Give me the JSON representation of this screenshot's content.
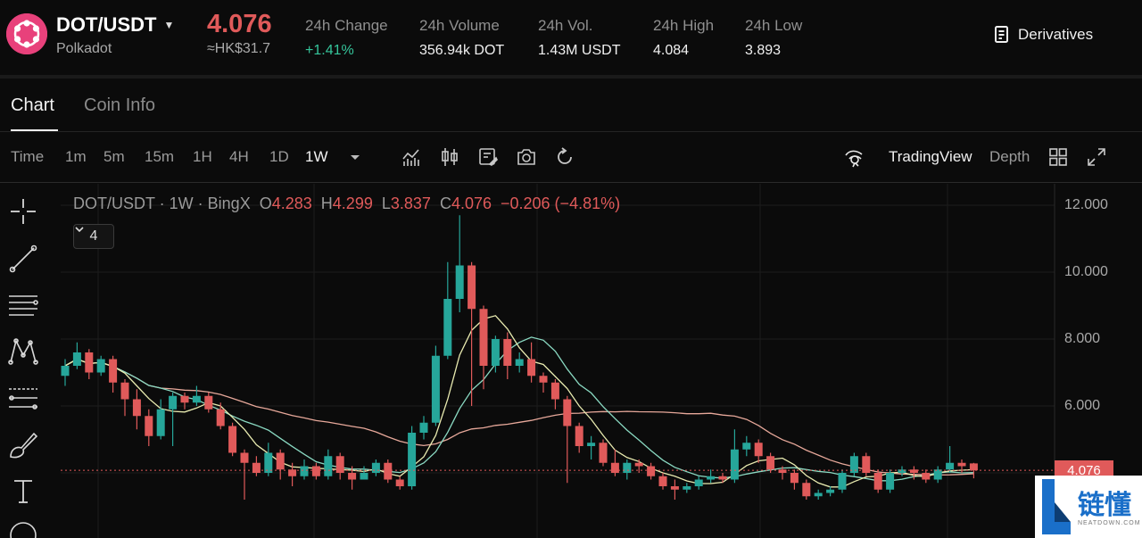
{
  "header": {
    "pair": "DOT/USDT",
    "pair_sub": "Polkadot",
    "price": "4.076",
    "price_hk": "≈HK$31.7",
    "stats": [
      {
        "label": "24h Change",
        "value": "+1.41%",
        "positive": true
      },
      {
        "label": "24h Volume",
        "value": "356.94k DOT"
      },
      {
        "label": "24h Vol.",
        "value": "1.43M USDT"
      },
      {
        "label": "24h High",
        "value": "4.084"
      },
      {
        "label": "24h Low",
        "value": "3.893"
      }
    ],
    "derivatives_label": "Derivatives"
  },
  "tabs": [
    {
      "label": "Chart",
      "active": true
    },
    {
      "label": "Coin Info",
      "active": false
    }
  ],
  "toolbar": {
    "timeframes": [
      "Time",
      "1m",
      "5m",
      "15m",
      "1H",
      "4H",
      "1D",
      "1W"
    ],
    "active_timeframe": "1W",
    "icons": [
      "indicators-icon",
      "candle-type-icon",
      "template-icon",
      "screenshot-icon",
      "reset-icon"
    ],
    "tradingview_label": "TradingView",
    "depth_label": "Depth"
  },
  "legend": {
    "symbol": "DOT/USDT · 1W · BingX",
    "o_label": "O",
    "o": "4.283",
    "h_label": "H",
    "h": "4.299",
    "l_label": "L",
    "l": "3.837",
    "c_label": "C",
    "c": "4.076",
    "change": "−0.206 (−4.81%)",
    "collapse_count": "4"
  },
  "chart_data": {
    "type": "candlestick",
    "interval": "1W",
    "y_ticks": [
      "12.000",
      "10.000",
      "8.000",
      "6.000"
    ],
    "ylim": [
      2.1,
      12.5
    ],
    "last_price": "4.076",
    "colors": {
      "up": "#26a69a",
      "down": "#e05a5a",
      "ma_fast": "#e9ebb0",
      "ma_mid": "#8ad9c2",
      "ma_slow": "#e7a89a"
    },
    "candles": [
      [
        6.9,
        7.2,
        7.4,
        6.6
      ],
      [
        7.2,
        7.6,
        7.9,
        7.1
      ],
      [
        7.6,
        7.0,
        7.7,
        6.8
      ],
      [
        7.0,
        7.4,
        7.5,
        6.9
      ],
      [
        7.4,
        6.7,
        7.5,
        6.4
      ],
      [
        6.7,
        6.2,
        6.8,
        5.7
      ],
      [
        6.2,
        5.7,
        6.5,
        5.3
      ],
      [
        5.7,
        5.1,
        5.9,
        4.8
      ],
      [
        5.1,
        5.9,
        6.2,
        5.0
      ],
      [
        5.9,
        6.3,
        6.4,
        4.8
      ],
      [
        6.3,
        6.1,
        6.4,
        5.9
      ],
      [
        6.1,
        6.3,
        6.6,
        6.0
      ],
      [
        6.3,
        5.9,
        6.4,
        5.8
      ],
      [
        5.9,
        5.4,
        6.1,
        5.3
      ],
      [
        5.4,
        4.6,
        5.5,
        4.5
      ],
      [
        4.6,
        4.3,
        4.7,
        3.2
      ],
      [
        4.3,
        4.0,
        4.5,
        3.9
      ],
      [
        4.0,
        4.6,
        4.9,
        3.9
      ],
      [
        4.6,
        4.1,
        4.7,
        3.8
      ],
      [
        4.1,
        3.9,
        4.3,
        3.6
      ],
      [
        3.9,
        4.2,
        4.4,
        3.8
      ],
      [
        4.2,
        3.9,
        4.3,
        3.8
      ],
      [
        3.9,
        4.5,
        4.7,
        3.8
      ],
      [
        4.5,
        4.0,
        4.6,
        3.8
      ],
      [
        4.0,
        3.8,
        4.2,
        3.5
      ],
      [
        3.8,
        4.0,
        4.2,
        3.8
      ],
      [
        4.0,
        4.3,
        4.4,
        3.9
      ],
      [
        4.3,
        3.8,
        4.4,
        3.7
      ],
      [
        3.8,
        3.6,
        3.9,
        3.5
      ],
      [
        3.6,
        5.2,
        5.4,
        3.5
      ],
      [
        5.2,
        5.5,
        5.7,
        5.0
      ],
      [
        5.5,
        7.5,
        7.8,
        5.4
      ],
      [
        7.5,
        9.2,
        10.3,
        7.4
      ],
      [
        9.2,
        10.2,
        11.7,
        8.8
      ],
      [
        10.2,
        8.9,
        10.3,
        6.0
      ],
      [
        8.9,
        7.2,
        9.0,
        6.5
      ],
      [
        7.2,
        8.0,
        8.1,
        7.0
      ],
      [
        8.0,
        7.2,
        8.2,
        6.8
      ],
      [
        7.2,
        7.4,
        7.6,
        7.0
      ],
      [
        7.4,
        6.9,
        7.9,
        6.7
      ],
      [
        6.9,
        6.7,
        7.0,
        6.4
      ],
      [
        6.7,
        6.2,
        6.8,
        5.9
      ],
      [
        6.2,
        5.4,
        6.3,
        3.7
      ],
      [
        5.4,
        4.8,
        5.5,
        4.6
      ],
      [
        4.8,
        4.9,
        5.1,
        4.4
      ],
      [
        4.9,
        4.3,
        5.0,
        4.2
      ],
      [
        4.3,
        4.0,
        4.7,
        3.9
      ],
      [
        4.0,
        4.3,
        4.4,
        3.8
      ],
      [
        4.3,
        4.2,
        4.4,
        4.0
      ],
      [
        4.2,
        3.9,
        4.3,
        3.8
      ],
      [
        3.9,
        3.6,
        4.0,
        3.5
      ],
      [
        3.6,
        3.5,
        3.8,
        3.2
      ],
      [
        3.5,
        3.6,
        3.7,
        3.4
      ],
      [
        3.6,
        3.8,
        3.9,
        3.5
      ],
      [
        3.8,
        3.9,
        4.1,
        3.7
      ],
      [
        3.9,
        3.8,
        4.0,
        3.7
      ],
      [
        3.8,
        4.7,
        5.3,
        3.7
      ],
      [
        4.7,
        4.9,
        5.1,
        4.5
      ],
      [
        4.9,
        4.5,
        5.0,
        4.3
      ],
      [
        4.5,
        4.1,
        4.6,
        4.0
      ],
      [
        4.1,
        4.0,
        4.2,
        3.8
      ],
      [
        4.0,
        3.7,
        4.1,
        3.5
      ],
      [
        3.7,
        3.3,
        3.8,
        3.2
      ],
      [
        3.3,
        3.4,
        3.5,
        3.2
      ],
      [
        3.4,
        3.5,
        3.6,
        3.3
      ],
      [
        3.5,
        4.0,
        4.1,
        3.4
      ],
      [
        4.0,
        4.5,
        4.6,
        3.9
      ],
      [
        4.5,
        4.0,
        4.6,
        3.9
      ],
      [
        4.0,
        3.5,
        4.1,
        3.4
      ],
      [
        3.5,
        4.0,
        4.1,
        3.4
      ],
      [
        4.0,
        4.1,
        4.2,
        3.9
      ],
      [
        4.1,
        4.0,
        4.2,
        3.8
      ],
      [
        4.0,
        3.8,
        4.1,
        3.7
      ],
      [
        3.8,
        4.1,
        4.2,
        3.7
      ],
      [
        4.1,
        4.3,
        4.8,
        4.0
      ],
      [
        4.3,
        4.2,
        4.4,
        4.0
      ],
      [
        4.283,
        4.076,
        4.299,
        3.837
      ]
    ]
  },
  "watermark": {
    "cn": "链懂",
    "en": "NEATDOWN.COM"
  }
}
